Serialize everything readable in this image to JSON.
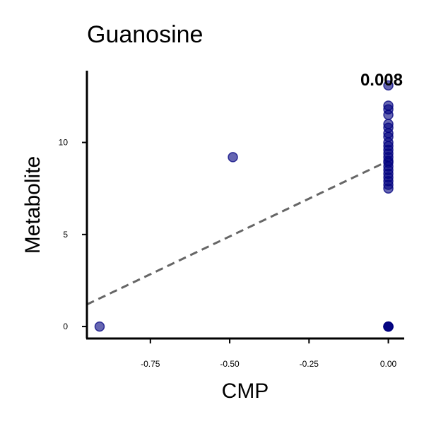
{
  "chart_data": {
    "type": "scatter",
    "title": "Guanosine",
    "xlabel": "CMP",
    "ylabel": "Metabolite",
    "annotation": "0.008",
    "xlim": [
      -0.95,
      0.05
    ],
    "ylim": [
      -0.65,
      13.9
    ],
    "xticks": [
      -0.75,
      -0.5,
      -0.25,
      0.0
    ],
    "xtick_labels": [
      "-0.75",
      "-0.50",
      "-0.25",
      "0.00"
    ],
    "yticks": [
      0,
      5,
      10
    ],
    "ytick_labels": [
      "0",
      "5",
      "10"
    ],
    "grid": false,
    "legend": "none",
    "point_color": "#00007f",
    "point_fill_opacity": 0.6,
    "trendline": {
      "style": "dashed",
      "color": "#666666",
      "x": [
        -0.95,
        0.0
      ],
      "y": [
        1.2,
        9.0
      ]
    },
    "points": [
      {
        "x": -0.91,
        "y": 0.0
      },
      {
        "x": -0.49,
        "y": 9.2
      },
      {
        "x": 0.0,
        "y": 0.0
      },
      {
        "x": 0.0,
        "y": 0.0
      },
      {
        "x": 0.0,
        "y": 0.0
      },
      {
        "x": 0.0,
        "y": 0.0
      },
      {
        "x": 0.0,
        "y": 7.5
      },
      {
        "x": 0.0,
        "y": 7.7
      },
      {
        "x": 0.0,
        "y": 7.9
      },
      {
        "x": 0.0,
        "y": 8.1
      },
      {
        "x": 0.0,
        "y": 8.3
      },
      {
        "x": 0.0,
        "y": 8.5
      },
      {
        "x": 0.0,
        "y": 8.7
      },
      {
        "x": 0.0,
        "y": 8.9
      },
      {
        "x": 0.0,
        "y": 9.0
      },
      {
        "x": 0.0,
        "y": 9.2
      },
      {
        "x": 0.0,
        "y": 9.4
      },
      {
        "x": 0.0,
        "y": 9.6
      },
      {
        "x": 0.0,
        "y": 9.8
      },
      {
        "x": 0.0,
        "y": 10.0
      },
      {
        "x": 0.0,
        "y": 10.3
      },
      {
        "x": 0.0,
        "y": 10.5
      },
      {
        "x": 0.0,
        "y": 10.8
      },
      {
        "x": 0.0,
        "y": 11.0
      },
      {
        "x": 0.0,
        "y": 11.5
      },
      {
        "x": 0.0,
        "y": 11.8
      },
      {
        "x": 0.0,
        "y": 12.0
      },
      {
        "x": 0.0,
        "y": 13.1
      }
    ]
  }
}
